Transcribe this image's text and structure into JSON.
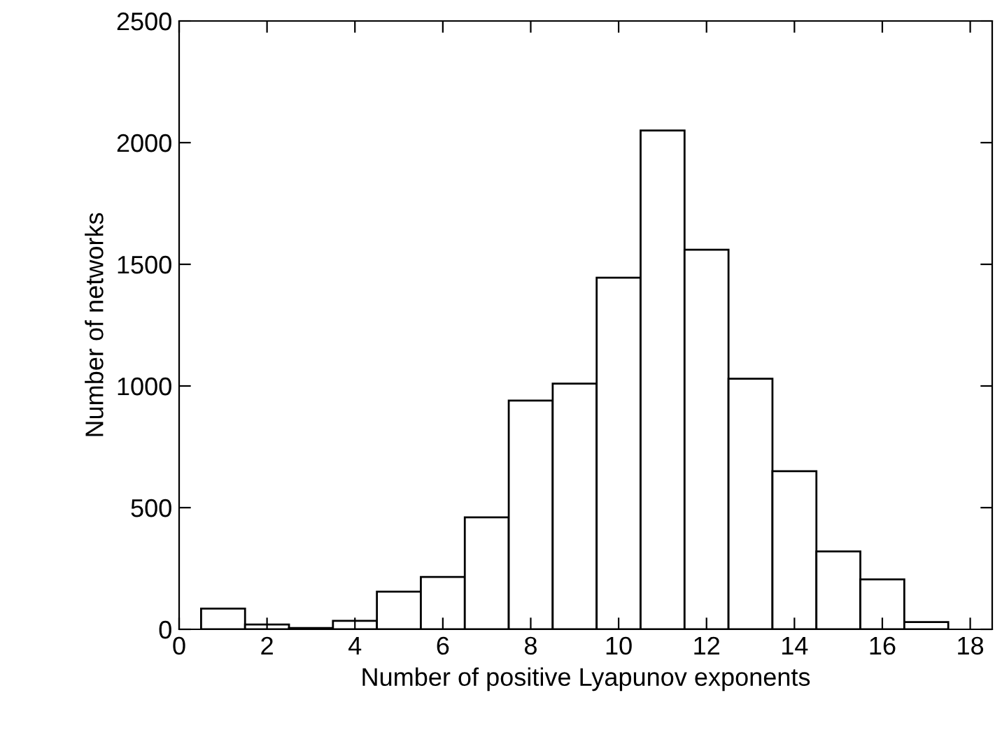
{
  "chart_data": {
    "type": "histogram",
    "xlabel": "Number of positive Lyapunov exponents",
    "ylabel": "Number of networks",
    "bins": [
      0.5,
      1.5,
      2.5,
      3.5,
      4.5,
      5.5,
      6.5,
      7.5,
      8.5,
      9.5,
      10.5,
      11.5,
      12.5,
      13.5,
      14.5,
      15.5,
      16.5,
      17.5
    ],
    "values": [
      85,
      20,
      5,
      35,
      155,
      215,
      460,
      940,
      1010,
      1445,
      2050,
      1560,
      1030,
      650,
      320,
      205,
      30
    ],
    "color": "#ffffff",
    "xlim": [
      0,
      18.5
    ],
    "ylim": [
      0,
      2500
    ],
    "xticks": [
      0,
      2,
      4,
      6,
      8,
      10,
      12,
      14,
      16,
      18
    ],
    "yticks": [
      0,
      500,
      1000,
      1500,
      2000,
      2500
    ],
    "grid": false
  }
}
